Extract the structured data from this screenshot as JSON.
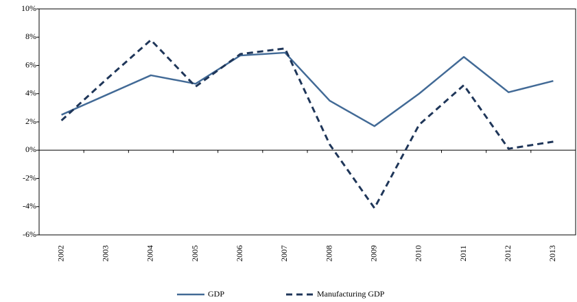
{
  "chart_data": {
    "type": "line",
    "categories": [
      "2002",
      "2003",
      "2004",
      "2005",
      "2006",
      "2007",
      "2008",
      "2009",
      "2010",
      "2011",
      "2012",
      "2013"
    ],
    "series": [
      {
        "name": "GDP",
        "color": "#426a96",
        "dash": false,
        "values": [
          2.5,
          3.9,
          5.3,
          4.7,
          6.7,
          6.9,
          3.5,
          1.7,
          4.0,
          6.6,
          4.1,
          4.9
        ]
      },
      {
        "name": "Manufacturing GDP",
        "color": "#1f3659",
        "dash": true,
        "values": [
          2.1,
          5.0,
          7.8,
          4.5,
          6.8,
          7.2,
          0.4,
          -4.1,
          1.8,
          4.6,
          0.1,
          0.6
        ]
      }
    ],
    "ylim": [
      -6,
      10
    ],
    "yticks": [
      {
        "value": -6,
        "label": "-6%"
      },
      {
        "value": -4,
        "label": "-4%"
      },
      {
        "value": -2,
        "label": "-2%"
      },
      {
        "value": 0,
        "label": "0%"
      },
      {
        "value": 2,
        "label": "2%"
      },
      {
        "value": 4,
        "label": "4%"
      },
      {
        "value": 6,
        "label": "6%"
      },
      {
        "value": 8,
        "label": "8%"
      },
      {
        "value": 10,
        "label": "10%"
      }
    ],
    "legend": "bottom"
  }
}
